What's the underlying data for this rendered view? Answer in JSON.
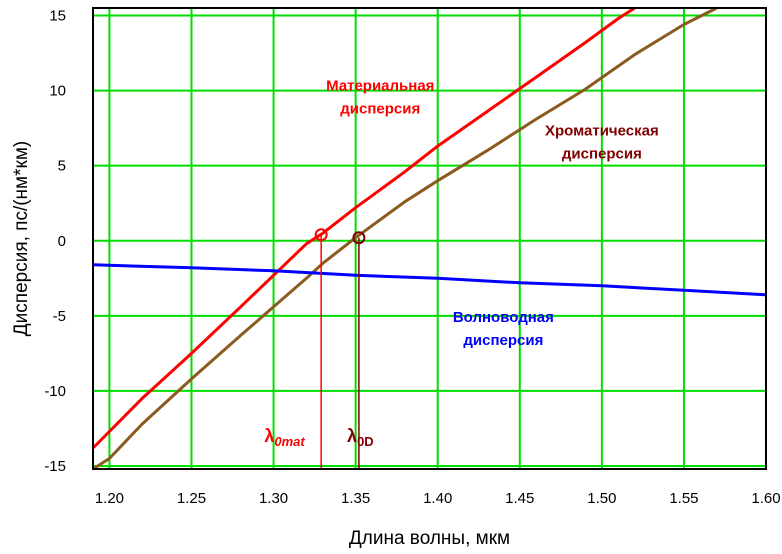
{
  "chart_data": {
    "type": "line",
    "title": "",
    "xlabel": "Длина волны, мкм",
    "ylabel": "Дисперсия, пс/(нм*км)",
    "xlim": [
      1.19,
      1.6
    ],
    "ylim": [
      -15.2,
      15.5
    ],
    "xticks": [
      1.2,
      1.25,
      1.3,
      1.35,
      1.4,
      1.45,
      1.5,
      1.55,
      1.6
    ],
    "xtick_labels": [
      "1.20",
      "1.25",
      "1.30",
      "1.35",
      "1.40",
      "1.45",
      "1.50",
      "1.55",
      "1.60"
    ],
    "yticks": [
      15,
      10,
      5,
      0,
      -5,
      -10,
      -15
    ],
    "ytick_labels": [
      "15",
      "10",
      "5",
      "0",
      "-5",
      "-10",
      "-15"
    ],
    "grid": true,
    "grid_color": "#00dd00",
    "series": [
      {
        "name": "Материальная дисперсия",
        "color": "#ff0000",
        "x": [
          1.19,
          1.2,
          1.22,
          1.25,
          1.28,
          1.3,
          1.32,
          1.33,
          1.35,
          1.38,
          1.4,
          1.43,
          1.46,
          1.49,
          1.51,
          1.52
        ],
        "y": [
          -13.8,
          -12.7,
          -10.5,
          -7.5,
          -4.4,
          -2.3,
          -0.2,
          0.5,
          2.2,
          4.6,
          6.3,
          8.6,
          10.9,
          13.2,
          14.8,
          15.5
        ]
      },
      {
        "name": "Хроматическая дисперсия",
        "color": "#8b5a1e",
        "x": [
          1.19,
          1.2,
          1.22,
          1.25,
          1.28,
          1.3,
          1.32,
          1.33,
          1.35,
          1.36,
          1.38,
          1.4,
          1.43,
          1.46,
          1.49,
          1.52,
          1.55,
          1.57
        ],
        "y": [
          -15.2,
          -14.5,
          -12.2,
          -9.2,
          -6.3,
          -4.4,
          -2.5,
          -1.5,
          0.2,
          1.0,
          2.6,
          4.0,
          6.0,
          8.1,
          10.1,
          12.4,
          14.4,
          15.5
        ]
      },
      {
        "name": "Волноводная дисперсия",
        "color": "#0000ff",
        "x": [
          1.19,
          1.25,
          1.3,
          1.35,
          1.4,
          1.45,
          1.5,
          1.55,
          1.6
        ],
        "y": [
          -1.6,
          -1.8,
          -2.0,
          -2.3,
          -2.5,
          -2.8,
          -3.0,
          -3.3,
          -3.6
        ]
      }
    ],
    "markers": [
      {
        "x": 1.329,
        "y": 0.4,
        "color": "#ff0000"
      },
      {
        "x": 1.352,
        "y": 0.2,
        "color": "#800000"
      }
    ],
    "vertical_lines": [
      {
        "x": 1.329,
        "y_top": 0.4,
        "color": "#ff0000"
      },
      {
        "x": 1.352,
        "y_top": 0.2,
        "color": "#800000"
      }
    ],
    "annotations": [
      {
        "lines": [
          "Материальная",
          "дисперсия"
        ],
        "color": "#ff0000",
        "x": 1.365,
        "y": 10.0
      },
      {
        "lines": [
          "Хроматическая",
          "дисперсия"
        ],
        "color": "#800000",
        "x": 1.5,
        "y": 7.0
      },
      {
        "lines": [
          "Волноводная",
          "дисперсия"
        ],
        "color": "#0000ff",
        "x": 1.44,
        "y": -5.4
      }
    ],
    "lambda_labels": [
      {
        "main": "λ",
        "sub": "0mat",
        "italic_sub": true,
        "color": "#ff0000",
        "x": 1.319,
        "y": -13.4
      },
      {
        "main": "λ",
        "sub": "0D",
        "italic_sub": false,
        "color": "#800000",
        "x": 1.361,
        "y": -13.4
      }
    ]
  }
}
